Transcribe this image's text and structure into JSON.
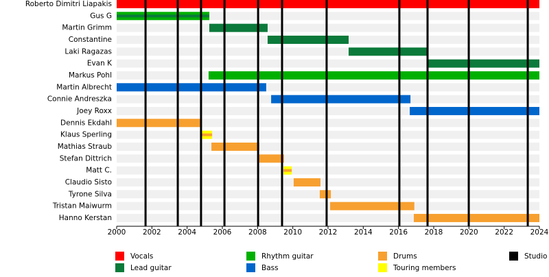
{
  "chart_data": {
    "type": "timeline",
    "xlim": [
      2000,
      2024
    ],
    "xticks": [
      2000,
      2002,
      2004,
      2006,
      2008,
      2010,
      2012,
      2014,
      2016,
      2018,
      2020,
      2022,
      2024
    ],
    "roles": [
      {
        "name": "Vocals",
        "color": "#ff0000"
      },
      {
        "name": "Lead guitar",
        "color": "#0b7a3a"
      },
      {
        "name": "Rhythm guitar",
        "color": "#00b000"
      },
      {
        "name": "Bass",
        "color": "#0066cc"
      },
      {
        "name": "Drums",
        "color": "#f7a030"
      },
      {
        "name": "Touring members",
        "color": "#ffff00"
      },
      {
        "name": "Studio albums",
        "color": "#000000"
      }
    ],
    "members": [
      {
        "name": "Roberto Dimitri Liapakis",
        "role": "Vocals",
        "start": 2000,
        "end": 2024
      },
      {
        "name": "Gus G",
        "role": "Rhythm guitar",
        "stripe": "Lead guitar",
        "start": 2000,
        "end": 2005.26
      },
      {
        "name": "Martin Grimm",
        "role": "Lead guitar",
        "start": 2005.26,
        "end": 2008.57
      },
      {
        "name": "Constantine",
        "role": "Lead guitar",
        "start": 2008.57,
        "end": 2013.17
      },
      {
        "name": "Laki Ragazas",
        "role": "Lead guitar",
        "start": 2013.17,
        "end": 2017.65
      },
      {
        "name": "Evan K",
        "role": "Lead guitar",
        "start": 2017.65,
        "end": 2024
      },
      {
        "name": "Markus Pohl",
        "role": "Rhythm guitar",
        "start": 2005.22,
        "end": 2024
      },
      {
        "name": "Martin Albrecht",
        "role": "Bass",
        "start": 2000,
        "end": 2008.49
      },
      {
        "name": "Connie Andreszka",
        "role": "Bass",
        "start": 2008.77,
        "end": 2016.68
      },
      {
        "name": "Joey Roxx",
        "role": "Bass",
        "start": 2016.64,
        "end": 2024
      },
      {
        "name": "Dennis Ekdahl",
        "role": "Drums",
        "start": 2000,
        "end": 2004.83
      },
      {
        "name": "Klaus Sperling",
        "role": "Touring members",
        "stripe": "Drums",
        "start": 2004.79,
        "end": 2005.42
      },
      {
        "name": "Mathias Straub",
        "role": "Drums",
        "start": 2005.38,
        "end": 2008.1
      },
      {
        "name": "Stefan Dittrich",
        "role": "Drums",
        "start": 2008.07,
        "end": 2009.5
      },
      {
        "name": "Matt C.",
        "role": "Touring members",
        "stripe": "Drums",
        "start": 2009.47,
        "end": 2009.94
      },
      {
        "name": "Claudio Sisto",
        "role": "Drums",
        "start": 2010.05,
        "end": 2011.57
      },
      {
        "name": "Tyrone Silva",
        "role": "Drums",
        "start": 2011.53,
        "end": 2012.16
      },
      {
        "name": "Tristan Maiwurm",
        "role": "Drums",
        "start": 2012.12,
        "end": 2016.9
      },
      {
        "name": "Hanno Kerstan",
        "role": "Drums",
        "start": 2016.87,
        "end": 2024
      }
    ],
    "albums": [
      2001.64,
      2003.47,
      2004.79,
      2006.12,
      2008.03,
      2009.39,
      2011.92,
      2016.05,
      2017.65,
      2019.99,
      2023.34
    ]
  }
}
